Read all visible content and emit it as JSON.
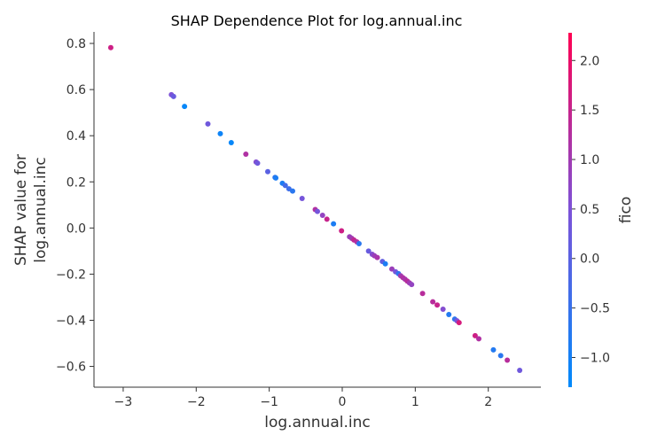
{
  "chart_data": {
    "type": "scatter",
    "title": "SHAP Dependence Plot for log.annual.inc",
    "xlabel": "log.annual.inc",
    "ylabel_line1": "SHAP value for",
    "ylabel_line2": "log.annual.inc",
    "xlim": [
      -3.4,
      2.72
    ],
    "ylim": [
      -0.69,
      0.85
    ],
    "xticks": [
      -3,
      -2,
      -1,
      0,
      1,
      2
    ],
    "xtick_labels": [
      "−3",
      "−2",
      "−1",
      "0",
      "1",
      "2"
    ],
    "yticks": [
      -0.6,
      -0.4,
      -0.2,
      0.0,
      0.2,
      0.4,
      0.6,
      0.8
    ],
    "ytick_labels": [
      "−0.6",
      "−0.4",
      "−0.2",
      "0.0",
      "0.2",
      "0.4",
      "0.6",
      "0.8"
    ],
    "colorbar": {
      "label": "fico",
      "range": [
        -1.3,
        2.28
      ],
      "ticks": [
        -1.0,
        -0.5,
        0.0,
        0.5,
        1.0,
        1.5,
        2.0
      ],
      "tick_labels": [
        "−1.0",
        "−0.5",
        "0.0",
        "0.5",
        "1.0",
        "1.5",
        "2.0"
      ],
      "colors": [
        "#008afb",
        "#7c52d8",
        "#ff0052"
      ]
    },
    "grid": false,
    "points": [
      {
        "x": -3.17,
        "y": 0.782,
        "c": 1.6
      },
      {
        "x": -2.34,
        "y": 0.578,
        "c": 0.5
      },
      {
        "x": -2.31,
        "y": 0.57,
        "c": 0.2
      },
      {
        "x": -2.16,
        "y": 0.527,
        "c": -1.2
      },
      {
        "x": -1.84,
        "y": 0.451,
        "c": 0.3
      },
      {
        "x": -1.67,
        "y": 0.409,
        "c": -1.1
      },
      {
        "x": -1.52,
        "y": 0.37,
        "c": -1.2
      },
      {
        "x": -1.32,
        "y": 0.32,
        "c": 1.2
      },
      {
        "x": -1.18,
        "y": 0.286,
        "c": 0.6
      },
      {
        "x": -1.16,
        "y": 0.281,
        "c": 0.3
      },
      {
        "x": -1.02,
        "y": 0.244,
        "c": 0.0
      },
      {
        "x": -0.92,
        "y": 0.219,
        "c": -0.6
      },
      {
        "x": -0.91,
        "y": 0.217,
        "c": -0.9
      },
      {
        "x": -0.82,
        "y": 0.194,
        "c": -0.9
      },
      {
        "x": -0.78,
        "y": 0.184,
        "c": -0.3
      },
      {
        "x": -0.73,
        "y": 0.17,
        "c": -0.4
      },
      {
        "x": -0.68,
        "y": 0.16,
        "c": -0.7
      },
      {
        "x": -0.55,
        "y": 0.128,
        "c": 0.4
      },
      {
        "x": -0.37,
        "y": 0.08,
        "c": 1.2
      },
      {
        "x": -0.34,
        "y": 0.072,
        "c": 0.4
      },
      {
        "x": -0.27,
        "y": 0.055,
        "c": 0.8
      },
      {
        "x": -0.21,
        "y": 0.038,
        "c": 1.5
      },
      {
        "x": -0.12,
        "y": 0.018,
        "c": -0.9
      },
      {
        "x": -0.01,
        "y": -0.012,
        "c": 1.6
      },
      {
        "x": 0.1,
        "y": -0.038,
        "c": 0.9
      },
      {
        "x": 0.13,
        "y": -0.045,
        "c": 1.0
      },
      {
        "x": 0.16,
        "y": -0.052,
        "c": 1.4
      },
      {
        "x": 0.2,
        "y": -0.06,
        "c": 1.2
      },
      {
        "x": 0.23,
        "y": -0.068,
        "c": -0.7
      },
      {
        "x": 0.36,
        "y": -0.1,
        "c": 0.2
      },
      {
        "x": 0.41,
        "y": -0.114,
        "c": 0.6
      },
      {
        "x": 0.44,
        "y": -0.12,
        "c": 0.9
      },
      {
        "x": 0.48,
        "y": -0.128,
        "c": 1.1
      },
      {
        "x": 0.55,
        "y": -0.145,
        "c": 0.1
      },
      {
        "x": 0.59,
        "y": -0.155,
        "c": -0.9
      },
      {
        "x": 0.68,
        "y": -0.178,
        "c": 0.9
      },
      {
        "x": 0.73,
        "y": -0.19,
        "c": 0.4
      },
      {
        "x": 0.77,
        "y": -0.198,
        "c": -0.6
      },
      {
        "x": 0.8,
        "y": -0.207,
        "c": 1.0
      },
      {
        "x": 0.83,
        "y": -0.215,
        "c": 1.2
      },
      {
        "x": 0.86,
        "y": -0.222,
        "c": 1.1
      },
      {
        "x": 0.89,
        "y": -0.23,
        "c": 1.3
      },
      {
        "x": 0.92,
        "y": -0.238,
        "c": 1.0
      },
      {
        "x": 0.95,
        "y": -0.245,
        "c": 0.8
      },
      {
        "x": 1.1,
        "y": -0.284,
        "c": 1.3
      },
      {
        "x": 1.24,
        "y": -0.32,
        "c": 1.3
      },
      {
        "x": 1.3,
        "y": -0.334,
        "c": 1.5
      },
      {
        "x": 1.38,
        "y": -0.352,
        "c": 0.6
      },
      {
        "x": 1.46,
        "y": -0.375,
        "c": -0.8
      },
      {
        "x": 1.54,
        "y": -0.395,
        "c": -0.6
      },
      {
        "x": 1.57,
        "y": -0.402,
        "c": 0.5
      },
      {
        "x": 1.6,
        "y": -0.41,
        "c": 1.7
      },
      {
        "x": 1.82,
        "y": -0.467,
        "c": 1.6
      },
      {
        "x": 1.87,
        "y": -0.48,
        "c": 1.2
      },
      {
        "x": 2.07,
        "y": -0.528,
        "c": -0.8
      },
      {
        "x": 2.17,
        "y": -0.553,
        "c": -0.7
      },
      {
        "x": 2.26,
        "y": -0.573,
        "c": 1.3
      },
      {
        "x": 2.43,
        "y": -0.617,
        "c": 0.3
      }
    ]
  }
}
